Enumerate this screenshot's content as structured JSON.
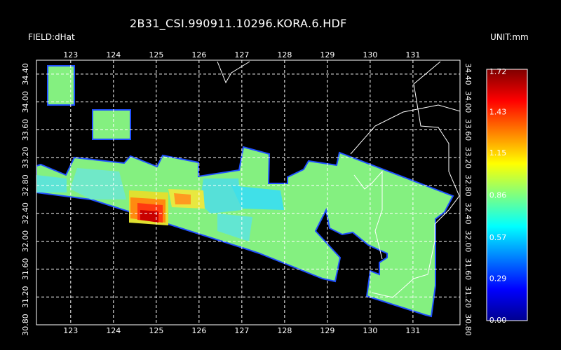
{
  "title": "2B31_CSI.990911.10296.KORA.6.HDF",
  "field_label": "FIELD:dHat",
  "unit_label": "UNIT:mm",
  "map": {
    "lon_ticks": [
      "123",
      "124",
      "125",
      "126",
      "127",
      "128",
      "129",
      "130",
      "131"
    ],
    "lat_ticks": [
      "34.40",
      "34.00",
      "33.60",
      "33.20",
      "32.80",
      "32.40",
      "32.00",
      "31.60",
      "31.20",
      "30.80"
    ],
    "lon_range": [
      122.2,
      132.1
    ],
    "lat_range": [
      30.8,
      34.6
    ],
    "grid": true
  },
  "colorbar": {
    "ticks": [
      "1.72",
      "1.43",
      "1.15",
      "0.86",
      "0.57",
      "0.29",
      "0.00"
    ],
    "range": [
      0.0,
      1.72
    ]
  }
}
